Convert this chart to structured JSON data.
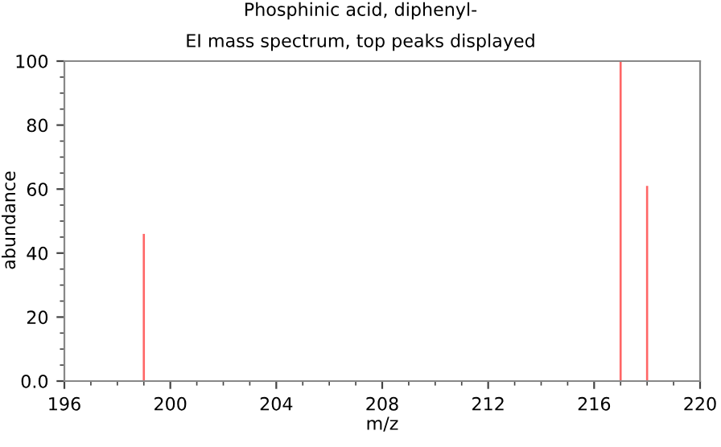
{
  "chart_data": {
    "type": "bar",
    "title": "Phosphinic acid, diphenyl-",
    "subtitle": "EI mass spectrum, top peaks displayed",
    "xlabel": "m/z",
    "ylabel": "abundance",
    "x": [
      199,
      217,
      218
    ],
    "series": [
      {
        "color": "#ff6666",
        "values": [
          46,
          100,
          61
        ]
      }
    ],
    "xlim": [
      196,
      220
    ],
    "xticks": [
      196,
      200,
      204,
      208,
      212,
      216,
      220
    ],
    "ylim": [
      0,
      100
    ],
    "yticks": [
      {
        "value": 0,
        "label": "0.0"
      },
      20,
      40,
      60,
      80,
      100
    ],
    "grid": false,
    "legend": false
  }
}
